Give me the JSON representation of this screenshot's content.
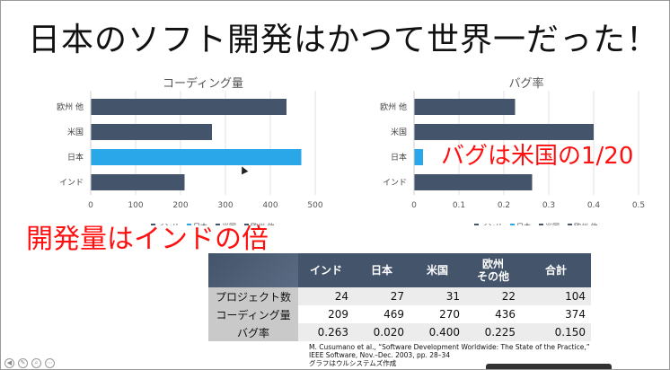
{
  "slide": {
    "title": "日本のソフト開発はかつて世界一だった！",
    "callout_bug": "バグは米国の1/20",
    "callout_dev": "開発量はインドの倍",
    "citation": [
      "M. Cusumano et al., “Software Development Worldwide: The State of the Practice,”",
      "IEEE Software, Nov.–Dec. 2003, pp. 28–34",
      "グラフはウルシステムズ作成"
    ]
  },
  "colors": {
    "bar": "#44546a",
    "highlight": "#2aa7e8",
    "red": "#ff1010"
  },
  "chart_data": [
    {
      "type": "bar",
      "orientation": "horizontal",
      "title": "コーディング量",
      "categories": [
        "欧州 他",
        "米国",
        "日本",
        "インド"
      ],
      "values": [
        436,
        270,
        469,
        209
      ],
      "highlight": "日本",
      "xlim": [
        0,
        500
      ],
      "xticks": [
        "0",
        "100",
        "200",
        "300",
        "400",
        "500"
      ],
      "legend": [
        "インド",
        "日本",
        "米国",
        "欧州 他"
      ],
      "legend_position": "bottom"
    },
    {
      "type": "bar",
      "orientation": "horizontal",
      "title": "バグ率",
      "categories": [
        "欧州 他",
        "米国",
        "日本",
        "インド"
      ],
      "values": [
        0.225,
        0.4,
        0.02,
        0.263
      ],
      "highlight": "日本",
      "xlim": [
        0,
        0.5
      ],
      "xticks": [
        "0",
        "0.1",
        "0.2",
        "0.3",
        "0.4",
        "0.5"
      ],
      "legend": [
        "インド",
        "日本",
        "米国",
        "欧州 他"
      ],
      "legend_position": "bottom"
    }
  ],
  "table": {
    "headers": [
      "インド",
      "日本",
      "米国",
      "欧州\nその他",
      "合計"
    ],
    "rows": [
      {
        "label": "プロジェクト数",
        "values": [
          "24",
          "27",
          "31",
          "22",
          "104"
        ]
      },
      {
        "label": "コーディング量",
        "values": [
          "209",
          "469",
          "270",
          "436",
          "374"
        ]
      },
      {
        "label": "バグ率",
        "values": [
          "0.263",
          "0.020",
          "0.400",
          "0.225",
          "0.150"
        ]
      }
    ]
  }
}
